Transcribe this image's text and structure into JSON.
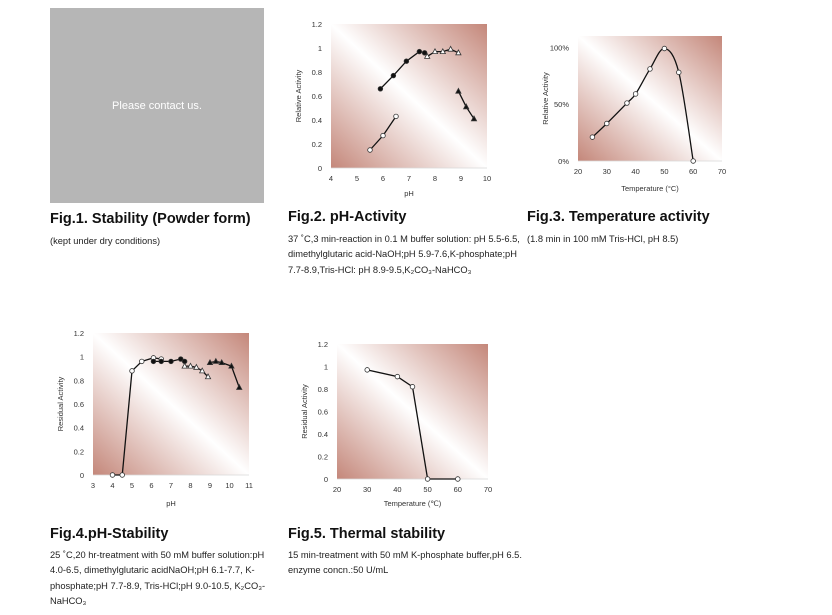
{
  "fig1": {
    "placeholder": "Please contact us.",
    "title": "Fig.1. Stability (Powder form)",
    "caption": "(kept under dry conditions)"
  },
  "fig2": {
    "title": "Fig.2. pH-Activity",
    "caption": "37 ˚C,3 min-reaction in 0.1 M buffer solution: pH 5.5-6.5, dimethylglutaric acid-NaOH;pH 5.9-7.6,K-phosphate;pH 7.7-8.9,Tris-HCl: pH 8.9-9.5,K₂CO₃-NaHCO₃"
  },
  "fig3": {
    "title": "Fig.3. Temperature activity",
    "caption": "(1.8 min in 100 mM Tris-HCl, pH 8.5)"
  },
  "fig4": {
    "title": "Fig.4.pH-Stability",
    "caption": "25 ˚C,20 hr-treatment with 50 mM buffer solution:pH 4.0-6.5, dimethylglutaric acidNaOH;pH 6.1-7.7, K-phosphate;pH 7.7-8.9, Tris-HCl;pH 9.0-10.5, K₂CO₃-NaHCO₃"
  },
  "fig5": {
    "title": "Fig.5. Thermal stability",
    "caption": "15 min-treatment with 50 mM K-phosphate buffer,pH 6.5. enzyme concn.:50 U/mL"
  },
  "colors": {
    "bg_edge": "#c4877a",
    "bg_mid": "#ffffff",
    "line": "#111111"
  },
  "chart_data": [
    {
      "id": "fig2",
      "type": "scatter",
      "xlabel": "pH",
      "ylabel": "Relative Activity",
      "xlim": [
        4,
        10
      ],
      "ylim": [
        0,
        1.2
      ],
      "xticks": [
        4,
        5,
        6,
        7,
        8,
        9,
        10
      ],
      "yticks": [
        0,
        0.2,
        0.4,
        0.6,
        0.8,
        1,
        1.2
      ],
      "yticklabels": [
        "0",
        "0.2",
        "0.4",
        "0.6",
        "0.8",
        "1",
        "1.2"
      ],
      "series": [
        {
          "name": "dimethylglutaric acid-NaOH",
          "marker": "open-circle",
          "x": [
            5.5,
            6.0,
            6.5
          ],
          "y": [
            0.15,
            0.27,
            0.43
          ]
        },
        {
          "name": "K-phosphate",
          "marker": "filled-circle",
          "x": [
            5.9,
            6.4,
            6.9,
            7.4,
            7.6
          ],
          "y": [
            0.66,
            0.77,
            0.89,
            0.97,
            0.96
          ]
        },
        {
          "name": "Tris-HCl",
          "marker": "open-triangle",
          "x": [
            7.7,
            8.0,
            8.3,
            8.6,
            8.9
          ],
          "y": [
            0.93,
            0.97,
            0.97,
            0.99,
            0.96
          ]
        },
        {
          "name": "K2CO3-NaHCO3",
          "marker": "filled-triangle",
          "x": [
            8.9,
            9.2,
            9.5
          ],
          "y": [
            0.64,
            0.51,
            0.41
          ]
        }
      ]
    },
    {
      "id": "fig3",
      "type": "line",
      "smooth": true,
      "xlabel": "Temperature (°C)",
      "ylabel": "Relative Activity",
      "xlim": [
        20,
        70
      ],
      "ylim": [
        0,
        1.1
      ],
      "xticks": [
        20,
        30,
        40,
        50,
        60,
        70
      ],
      "yticks": [
        0,
        0.5,
        1
      ],
      "yticklabels": [
        "0%",
        "50%",
        "100%"
      ],
      "series": [
        {
          "name": "Tris-HCl pH 8.5",
          "marker": "open-circle",
          "x": [
            25,
            30,
            37,
            40,
            45,
            50,
            55,
            60
          ],
          "y": [
            0.21,
            0.33,
            0.51,
            0.59,
            0.81,
            0.99,
            0.78,
            0.0
          ]
        }
      ]
    },
    {
      "id": "fig4",
      "type": "scatter",
      "xlabel": "pH",
      "ylabel": "Residual Activity",
      "xlim": [
        3,
        11
      ],
      "ylim": [
        0,
        1.2
      ],
      "xticks": [
        3,
        4,
        5,
        6,
        7,
        8,
        9,
        10,
        11
      ],
      "yticks": [
        0,
        0.2,
        0.4,
        0.6,
        0.8,
        1,
        1.2
      ],
      "yticklabels": [
        "0",
        "0.2",
        "0.4",
        "0.6",
        "0.8",
        "1",
        "1.2"
      ],
      "series": [
        {
          "name": "dimethylglutaric acid-NaOH",
          "marker": "open-circle",
          "x": [
            4.0,
            4.5,
            5.0,
            5.5,
            6.1,
            6.5
          ],
          "y": [
            0,
            0,
            0.88,
            0.96,
            0.99,
            0.98
          ]
        },
        {
          "name": "K-phosphate",
          "marker": "filled-circle",
          "x": [
            6.1,
            6.5,
            7.0,
            7.5,
            7.7
          ],
          "y": [
            0.96,
            0.96,
            0.96,
            0.98,
            0.96
          ]
        },
        {
          "name": "Tris-HCl",
          "marker": "open-triangle",
          "x": [
            7.7,
            8.0,
            8.3,
            8.6,
            8.9
          ],
          "y": [
            0.92,
            0.92,
            0.91,
            0.88,
            0.83
          ]
        },
        {
          "name": "K2CO3-NaHCO3",
          "marker": "filled-triangle",
          "x": [
            9.0,
            9.3,
            9.6,
            10.1,
            10.5
          ],
          "y": [
            0.95,
            0.96,
            0.95,
            0.92,
            0.74
          ]
        }
      ]
    },
    {
      "id": "fig5",
      "type": "line",
      "xlabel": "Temperature (℃)",
      "ylabel": "Residual Activity",
      "xlim": [
        20,
        70
      ],
      "ylim": [
        0,
        1.2
      ],
      "xticks": [
        20,
        30,
        40,
        50,
        60,
        70
      ],
      "yticks": [
        0,
        0.2,
        0.4,
        0.6,
        0.8,
        1,
        1.2
      ],
      "yticklabels": [
        "0",
        "0.2",
        "0.4",
        "0.6",
        "0.8",
        "1",
        "1.2"
      ],
      "series": [
        {
          "name": "K-phosphate pH 6.5",
          "marker": "open-circle",
          "x": [
            30,
            40,
            45,
            50,
            60
          ],
          "y": [
            0.97,
            0.91,
            0.82,
            0,
            0
          ]
        }
      ]
    }
  ]
}
